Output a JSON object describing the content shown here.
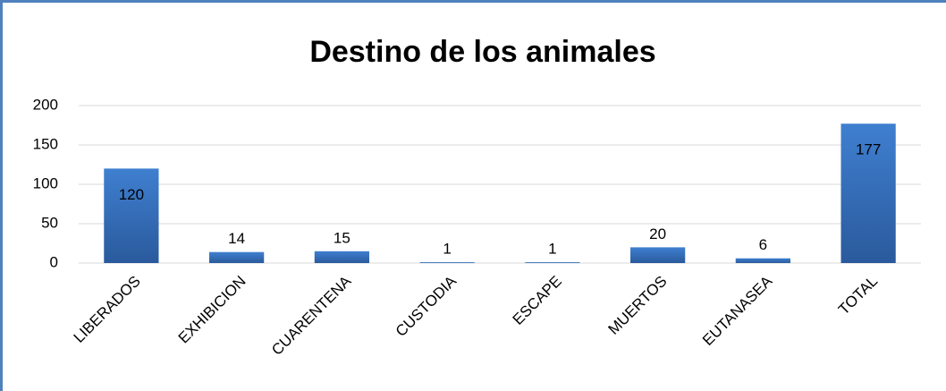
{
  "chart_data": {
    "type": "bar",
    "title": "Destino de los animales",
    "categories": [
      "LIBERADOS",
      "EXHIBICION",
      "CUARENTENA",
      "CUSTODIA",
      "ESCAPE",
      "MUERTOS",
      "EUTANASEA",
      "TOTAL"
    ],
    "values": [
      120,
      14,
      15,
      1,
      1,
      20,
      6,
      177
    ],
    "color": "#3f7fd0",
    "ylim": [
      0,
      200
    ],
    "yticks": [
      0,
      50,
      100,
      150,
      200
    ],
    "grid": true
  }
}
